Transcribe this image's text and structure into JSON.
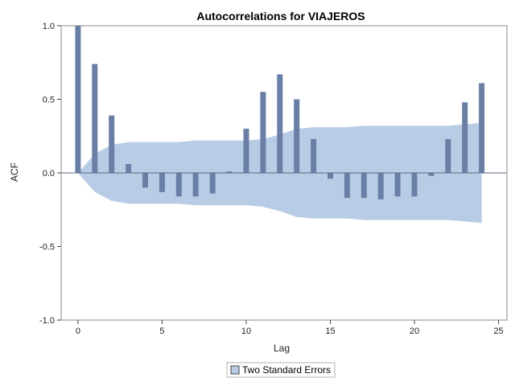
{
  "chart_data": {
    "type": "bar",
    "title": "Autocorrelations for VIAJEROS",
    "xlabel": "Lag",
    "ylabel": "ACF",
    "xlim": [
      -1,
      25.5
    ],
    "ylim": [
      -1.0,
      1.0
    ],
    "xticks": [
      0,
      5,
      10,
      15,
      20,
      25
    ],
    "yticks": [
      -1.0,
      -0.5,
      0.0,
      0.5,
      1.0
    ],
    "ytick_labels": [
      "-1.0",
      "-0.5",
      "0.0",
      "0.5",
      "1.0"
    ],
    "grid": false,
    "legend_position": "bottom",
    "legend": [
      "Two Standard Errors"
    ],
    "colors": {
      "bars": "#6a7fa6",
      "band": "#b8cce6",
      "zero_line": "#5a6a80",
      "frame": "#888888"
    },
    "series": [
      {
        "name": "ACF",
        "x": [
          0,
          1,
          2,
          3,
          4,
          5,
          6,
          7,
          8,
          9,
          10,
          11,
          12,
          13,
          14,
          15,
          16,
          17,
          18,
          19,
          20,
          21,
          22,
          23,
          24
        ],
        "values": [
          1.0,
          0.74,
          0.39,
          0.06,
          -0.1,
          -0.13,
          -0.16,
          -0.16,
          -0.14,
          0.01,
          0.3,
          0.55,
          0.67,
          0.5,
          0.23,
          -0.04,
          -0.17,
          -0.17,
          -0.18,
          -0.16,
          -0.16,
          -0.02,
          0.23,
          0.48,
          0.61
        ]
      },
      {
        "name": "Two Standard Errors",
        "type": "area",
        "x": [
          0,
          1,
          2,
          3,
          4,
          5,
          6,
          7,
          8,
          9,
          10,
          11,
          12,
          13,
          14,
          15,
          16,
          17,
          18,
          19,
          20,
          21,
          22,
          23,
          24
        ],
        "upper": [
          0.0,
          0.13,
          0.19,
          0.21,
          0.21,
          0.21,
          0.21,
          0.22,
          0.22,
          0.22,
          0.22,
          0.23,
          0.26,
          0.3,
          0.31,
          0.31,
          0.31,
          0.32,
          0.32,
          0.32,
          0.32,
          0.32,
          0.32,
          0.33,
          0.34
        ],
        "lower": [
          0.0,
          -0.13,
          -0.19,
          -0.21,
          -0.21,
          -0.21,
          -0.21,
          -0.22,
          -0.22,
          -0.22,
          -0.22,
          -0.23,
          -0.26,
          -0.3,
          -0.31,
          -0.31,
          -0.31,
          -0.32,
          -0.32,
          -0.32,
          -0.32,
          -0.32,
          -0.32,
          -0.33,
          -0.34
        ]
      }
    ]
  }
}
